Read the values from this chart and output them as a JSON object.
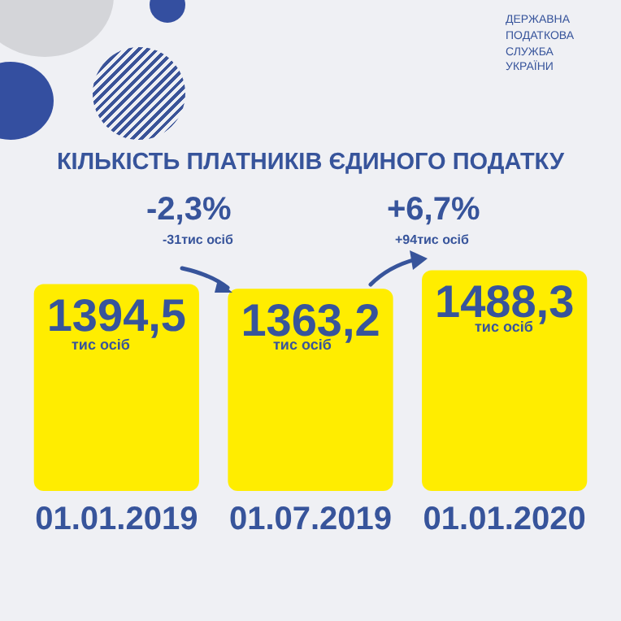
{
  "chart_data": {
    "type": "bar",
    "title": "КІЛЬКІСТЬ ПЛАТНИКІВ ЄДИНОГО ПОДАТКУ",
    "categories": [
      "01.01.2019",
      "01.07.2019",
      "01.01.2020"
    ],
    "values": [
      1394.5,
      1363.2,
      1488.3
    ],
    "color": "#ffed00",
    "value_labels": [
      "1394,5",
      "1363,2",
      "1488,3"
    ],
    "annotations": [
      "тис осіб",
      "тис осіб",
      "тис осіб",
      "-2,3%",
      "-31тис осіб",
      "+6,7%",
      "+94тис осіб",
      "ДЕРЖАВНА ПОДАТКОВА СЛУЖБА УКРАЇНИ"
    ],
    "grid": false,
    "legend": false
  }
}
